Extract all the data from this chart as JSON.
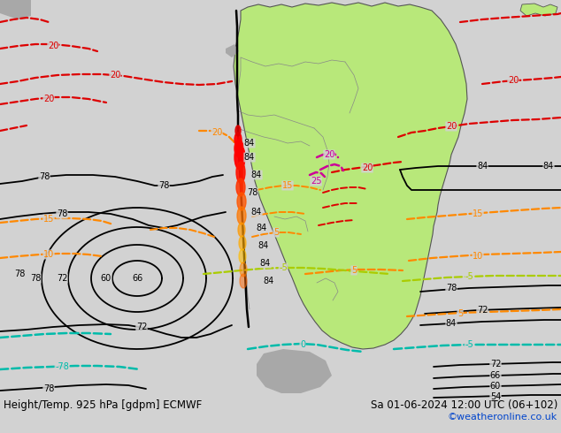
{
  "title_left": "Height/Temp. 925 hPa [gdpm] ECMWF",
  "title_right": "Sa 01-06-2024 12:00 UTC (06+102)",
  "credit": "©weatheronline.co.uk",
  "bg_color": "#d2d2d2",
  "land_green": "#b8e87a",
  "land_grey": "#a8a8a8",
  "figsize": [
    6.34,
    4.9
  ],
  "dpi": 100
}
